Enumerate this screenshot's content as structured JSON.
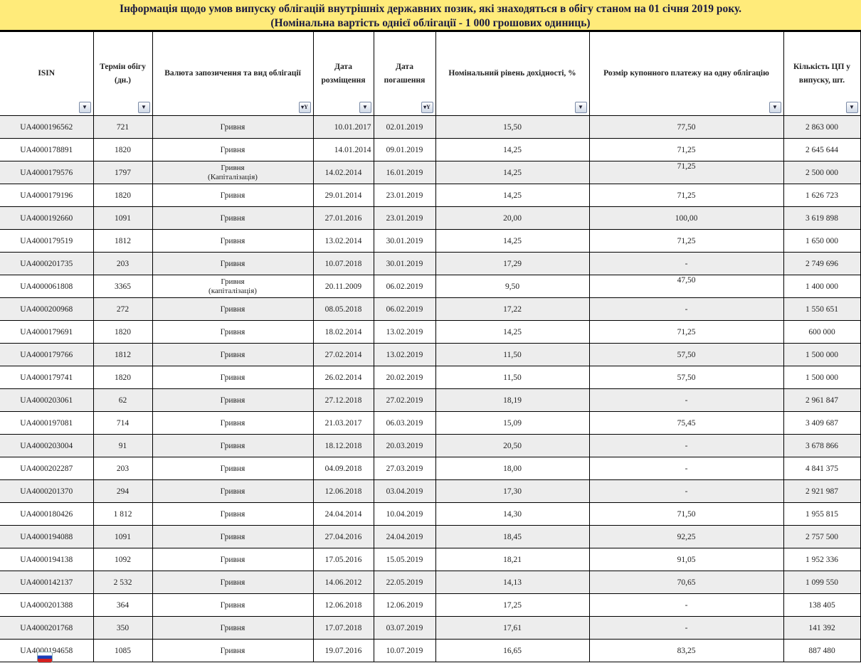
{
  "title": {
    "line1": "Інформація щодо умов випуску облігацій внутрішніх державних позик, які знаходяться в обігу станом на 01 січня 2019 року.",
    "line2": "(Номінальна вартість однієї облігації - 1 000 грошових одиниць)"
  },
  "columns": [
    {
      "label": "ISIN",
      "filter": "dropdown"
    },
    {
      "label": "Термін обігу (дн.)",
      "filter": "dropdown"
    },
    {
      "label": "Валюта запозичення та вид облігації",
      "filter": "filtered"
    },
    {
      "label": "Дата розміщення",
      "filter": "dropdown"
    },
    {
      "label": "Дата погашення",
      "filter": "filtered"
    },
    {
      "label": "Номінальний рівень дохідності, %",
      "filter": "dropdown"
    },
    {
      "label": "Розмір купонного платежу на одну облігацію",
      "filter": "dropdown"
    },
    {
      "label": "Кількість ЦП у випуску, шт.",
      "filter": "dropdown"
    }
  ],
  "rows": [
    [
      "UA4000196562",
      "721",
      "Гривня",
      "",
      "10.01.2017",
      "02.01.2019",
      "15,50",
      "77,50",
      "2 863 000"
    ],
    [
      "UA4000178891",
      "1820",
      "Гривня",
      "",
      "14.01.2014",
      "09.01.2019",
      "14,25",
      "71,25",
      "2 645 644"
    ],
    [
      "UA4000179576",
      "1797",
      "Гривня",
      "(Капіталізація)",
      "14.02.2014",
      "16.01.2019",
      "14,25",
      "71,25",
      "2 500 000"
    ],
    [
      "UA4000179196",
      "1820",
      "Гривня",
      "",
      "29.01.2014",
      "23.01.2019",
      "14,25",
      "71,25",
      "1 626 723"
    ],
    [
      "UA4000192660",
      "1091",
      "Гривня",
      "",
      "27.01.2016",
      "23.01.2019",
      "20,00",
      "100,00",
      "3 619 898"
    ],
    [
      "UA4000179519",
      "1812",
      "Гривня",
      "",
      "13.02.2014",
      "30.01.2019",
      "14,25",
      "71,25",
      "1 650 000"
    ],
    [
      "UA4000201735",
      "203",
      "Гривня",
      "",
      "10.07.2018",
      "30.01.2019",
      "17,29",
      "-",
      "2 749 696"
    ],
    [
      "UA4000061808",
      "3365",
      "Гривня",
      "(капіталізація)",
      "20.11.2009",
      "06.02.2019",
      "9,50",
      "47,50",
      "1 400 000"
    ],
    [
      "UA4000200968",
      "272",
      "Гривня",
      "",
      "08.05.2018",
      "06.02.2019",
      "17,22",
      "-",
      "1 550 651"
    ],
    [
      "UA4000179691",
      "1820",
      "Гривня",
      "",
      "18.02.2014",
      "13.02.2019",
      "14,25",
      "71,25",
      "600 000"
    ],
    [
      "UA4000179766",
      "1812",
      "Гривня",
      "",
      "27.02.2014",
      "13.02.2019",
      "11,50",
      "57,50",
      "1 500 000"
    ],
    [
      "UA4000179741",
      "1820",
      "Гривня",
      "",
      "26.02.2014",
      "20.02.2019",
      "11,50",
      "57,50",
      "1 500 000"
    ],
    [
      "UA4000203061",
      "62",
      "Гривня",
      "",
      "27.12.2018",
      "27.02.2019",
      "18,19",
      "-",
      "2 961 847"
    ],
    [
      "UA4000197081",
      "714",
      "Гривня",
      "",
      "21.03.2017",
      "06.03.2019",
      "15,09",
      "75,45",
      "3 409 687"
    ],
    [
      "UA4000203004",
      "91",
      "Гривня",
      "",
      "18.12.2018",
      "20.03.2019",
      "20,50",
      "-",
      "3 678 866"
    ],
    [
      "UA4000202287",
      "203",
      "Гривня",
      "",
      "04.09.2018",
      "27.03.2019",
      "18,00",
      "-",
      "4 841 375"
    ],
    [
      "UA4000201370",
      "294",
      "Гривня",
      "",
      "12.06.2018",
      "03.04.2019",
      "17,30",
      "-",
      "2 921 987"
    ],
    [
      "UA4000180426",
      "1 812",
      "Гривня",
      "",
      "24.04.2014",
      "10.04.2019",
      "14,30",
      "71,50",
      "1 955 815"
    ],
    [
      "UA4000194088",
      "1091",
      "Гривня",
      "",
      "27.04.2016",
      "24.04.2019",
      "18,45",
      "92,25",
      "2 757 500"
    ],
    [
      "UA4000194138",
      "1092",
      "Гривня",
      "",
      "17.05.2016",
      "15.05.2019",
      "18,21",
      "91,05",
      "1 952 336"
    ],
    [
      "UA4000142137",
      "2 532",
      "Гривня",
      "",
      "14.06.2012",
      "22.05.2019",
      "14,13",
      "70,65",
      "1 099 550"
    ],
    [
      "UA4000201388",
      "364",
      "Гривня",
      "",
      "12.06.2018",
      "12.06.2019",
      "17,25",
      "-",
      "138 405"
    ],
    [
      "UA4000201768",
      "350",
      "Гривня",
      "",
      "17.07.2018",
      "03.07.2019",
      "17,61",
      "-",
      "141 392"
    ],
    [
      "UA4000194658",
      "1085",
      "Гривня",
      "",
      "19.07.2016",
      "10.07.2019",
      "16,65",
      "83,25",
      "887 480"
    ]
  ],
  "colors": {
    "title_bg": "#FFEB7A",
    "alt_row": "#EDEDED"
  },
  "overlay_icon": "russian-flag-language-icon"
}
